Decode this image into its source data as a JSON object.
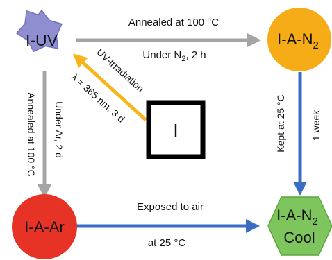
{
  "colors": {
    "star": "#8f8ed0",
    "star_stroke": "#7270b8",
    "orange": "#f6ac17",
    "red": "#e63325",
    "green": "#7fc55e",
    "green_stroke": "#5aa53c",
    "gray_arrow": "#a5a5a5",
    "blue_arrow": "#3a6cc4",
    "yellow_arrow": "#f7b51a",
    "square_border": "#000000"
  },
  "nodes": {
    "i_uv": {
      "label": "I-UV",
      "shape": "star"
    },
    "i": {
      "label": "I",
      "shape": "square"
    },
    "i_a_n2": {
      "label_main": "I-A-N",
      "label_sub": "2",
      "shape": "circle"
    },
    "i_a_ar": {
      "label": "I-A-Ar",
      "shape": "circle"
    },
    "i_a_n2_cool": {
      "label_main": "I-A-N",
      "label_sub": "2",
      "label_line2": "Cool",
      "shape": "hexagon"
    }
  },
  "edges": {
    "uv_to_n2": {
      "top": "Annealed at 100 °C",
      "bottom_main": "Under N",
      "bottom_sub": "2",
      "bottom_rest": ", 2 h"
    },
    "uv_to_ar": {
      "left": "Annealed at 100 °C",
      "right": "Under Ar, 2 d"
    },
    "i_to_uv": {
      "top": "UV-Irradiation",
      "bottom": "λ = 365 nm, 3 d"
    },
    "n2_to_cool": {
      "left": "Kept at 25 °C",
      "right": "1 week"
    },
    "ar_to_cool": {
      "top": "Exposed to air",
      "bottom": "at 25 °C"
    }
  }
}
